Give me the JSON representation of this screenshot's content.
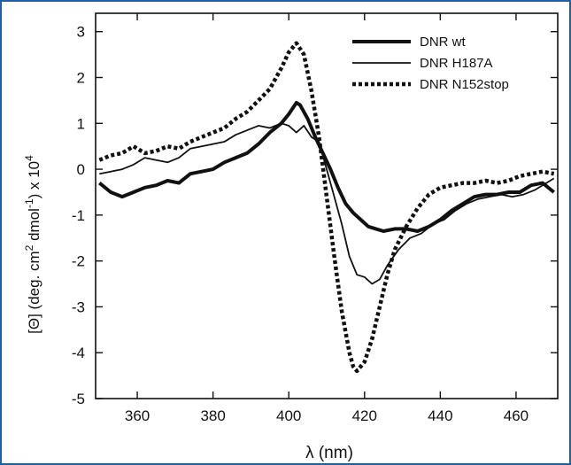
{
  "frame_color": "#1f5fa8",
  "chart_data": {
    "type": "line",
    "xlabel": "λ (nm)",
    "ylabel": {
      "parts": [
        "[Θ] (deg. cm",
        "2",
        " dmol",
        "-1",
        ") x 10",
        "4"
      ]
    },
    "xlim": [
      349,
      471
    ],
    "ylim": [
      -5,
      3.4
    ],
    "xticks": [
      360,
      380,
      400,
      420,
      440,
      460
    ],
    "yticks": [
      3,
      2,
      1,
      0,
      -1,
      -2,
      -3,
      -4,
      -5
    ],
    "legend_position": "top-right",
    "series": [
      {
        "name": "DNR wt",
        "style": "thick",
        "x": [
          350,
          353,
          356,
          359,
          362,
          365,
          368,
          371,
          374,
          377,
          380,
          383,
          386,
          389,
          392,
          395,
          398,
          400,
          402,
          403,
          405,
          407,
          409,
          411,
          413,
          415,
          417,
          419,
          421,
          423,
          425,
          428,
          431,
          434,
          437,
          440,
          443,
          446,
          449,
          452,
          455,
          458,
          461,
          464,
          467,
          470
        ],
        "y": [
          -0.3,
          -0.5,
          -0.6,
          -0.5,
          -0.4,
          -0.35,
          -0.25,
          -0.3,
          -0.1,
          -0.05,
          0.0,
          0.15,
          0.25,
          0.35,
          0.55,
          0.8,
          1.0,
          1.2,
          1.45,
          1.4,
          1.1,
          0.7,
          0.35,
          0.0,
          -0.4,
          -0.75,
          -0.95,
          -1.1,
          -1.25,
          -1.3,
          -1.35,
          -1.3,
          -1.3,
          -1.35,
          -1.25,
          -1.1,
          -0.9,
          -0.75,
          -0.6,
          -0.55,
          -0.55,
          -0.5,
          -0.5,
          -0.35,
          -0.3,
          -0.5
        ]
      },
      {
        "name": "DNR H187A",
        "style": "thin",
        "x": [
          350,
          353,
          356,
          359,
          362,
          365,
          368,
          371,
          374,
          377,
          380,
          383,
          386,
          389,
          392,
          395,
          398,
          400,
          402,
          404,
          406,
          408,
          410,
          412,
          414,
          416,
          418,
          420,
          422,
          424,
          426,
          429,
          432,
          435,
          438,
          441,
          444,
          447,
          450,
          453,
          456,
          459,
          462,
          465,
          468,
          470
        ],
        "y": [
          -0.1,
          -0.05,
          0.0,
          0.1,
          0.25,
          0.2,
          0.15,
          0.25,
          0.45,
          0.5,
          0.55,
          0.6,
          0.75,
          0.85,
          0.95,
          0.9,
          1.0,
          0.95,
          0.8,
          0.95,
          0.7,
          0.6,
          0.0,
          -0.6,
          -1.2,
          -1.9,
          -2.3,
          -2.35,
          -2.5,
          -2.4,
          -2.1,
          -1.75,
          -1.5,
          -1.4,
          -1.2,
          -1.1,
          -0.9,
          -0.75,
          -0.65,
          -0.6,
          -0.55,
          -0.6,
          -0.55,
          -0.45,
          -0.3,
          -0.2
        ]
      },
      {
        "name": "DNR N152stop",
        "style": "dotted",
        "x": [
          350,
          353,
          356,
          359,
          362,
          365,
          368,
          371,
          374,
          377,
          380,
          383,
          386,
          389,
          392,
          395,
          398,
          400,
          402,
          404,
          406,
          408,
          410,
          412,
          414,
          416,
          417,
          418,
          420,
          422,
          424,
          426,
          428,
          431,
          434,
          437,
          440,
          443,
          446,
          449,
          452,
          455,
          458,
          461,
          464,
          467,
          470
        ],
        "y": [
          0.2,
          0.3,
          0.35,
          0.5,
          0.35,
          0.4,
          0.5,
          0.45,
          0.6,
          0.7,
          0.8,
          0.9,
          1.1,
          1.25,
          1.5,
          1.75,
          2.2,
          2.55,
          2.75,
          2.5,
          1.7,
          0.7,
          -0.6,
          -1.9,
          -3.1,
          -4.0,
          -4.3,
          -4.4,
          -4.2,
          -3.7,
          -3.0,
          -2.3,
          -1.75,
          -1.25,
          -0.85,
          -0.55,
          -0.4,
          -0.35,
          -0.3,
          -0.3,
          -0.25,
          -0.3,
          -0.25,
          -0.15,
          -0.1,
          -0.05,
          -0.1
        ]
      }
    ]
  }
}
